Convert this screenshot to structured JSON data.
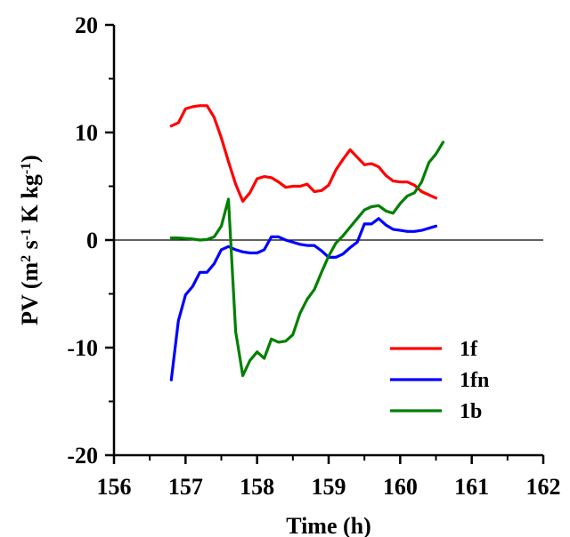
{
  "chart_data": {
    "type": "line",
    "xlabel": "Time (h)",
    "ylabel": {
      "parts": [
        {
          "text": "PV (m",
          "sup": false
        },
        {
          "text": "2",
          "sup": true
        },
        {
          "text": " s",
          "sup": false
        },
        {
          "text": "-1",
          "sup": true
        },
        {
          "text": " K kg",
          "sup": false
        },
        {
          "text": "-1",
          "sup": true
        },
        {
          "text": ")",
          "sup": false
        }
      ]
    },
    "xlim": [
      156,
      162
    ],
    "ylim": [
      -20,
      20
    ],
    "xticks": [
      156,
      157,
      158,
      159,
      160,
      161,
      162
    ],
    "yticks": [
      -20,
      -10,
      0,
      10,
      20
    ],
    "xtick_labels": [
      "156",
      "157",
      "158",
      "159",
      "160",
      "161",
      "162"
    ],
    "ytick_labels": [
      "-20",
      "-10",
      "0",
      "10",
      "20"
    ],
    "zero_line": true,
    "grid": false,
    "legend_position": "lower-right",
    "series": [
      {
        "name": "1f",
        "color": "#ff0000",
        "points": [
          [
            156.8,
            10.6
          ],
          [
            156.9,
            10.9
          ],
          [
            157.0,
            12.2
          ],
          [
            157.1,
            12.4
          ],
          [
            157.2,
            12.5
          ],
          [
            157.3,
            12.5
          ],
          [
            157.4,
            11.4
          ],
          [
            157.5,
            9.5
          ],
          [
            157.6,
            7.3
          ],
          [
            157.7,
            5.2
          ],
          [
            157.8,
            3.6
          ],
          [
            157.9,
            4.4
          ],
          [
            158.0,
            5.7
          ],
          [
            158.1,
            5.9
          ],
          [
            158.2,
            5.8
          ],
          [
            158.3,
            5.4
          ],
          [
            158.4,
            4.9
          ],
          [
            158.5,
            5.0
          ],
          [
            158.6,
            5.0
          ],
          [
            158.7,
            5.2
          ],
          [
            158.8,
            4.5
          ],
          [
            158.9,
            4.6
          ],
          [
            159.0,
            5.1
          ],
          [
            159.1,
            6.5
          ],
          [
            159.2,
            7.5
          ],
          [
            159.3,
            8.4
          ],
          [
            159.4,
            7.7
          ],
          [
            159.5,
            7.0
          ],
          [
            159.6,
            7.1
          ],
          [
            159.7,
            6.8
          ],
          [
            159.8,
            6.0
          ],
          [
            159.9,
            5.5
          ],
          [
            160.0,
            5.4
          ],
          [
            160.1,
            5.4
          ],
          [
            160.2,
            5.1
          ],
          [
            160.3,
            4.5
          ],
          [
            160.4,
            4.2
          ],
          [
            160.5,
            3.9
          ]
        ]
      },
      {
        "name": "1fn",
        "color": "#0000ff",
        "points": [
          [
            156.8,
            -13.0
          ],
          [
            156.9,
            -7.5
          ],
          [
            157.0,
            -5.1
          ],
          [
            157.1,
            -4.3
          ],
          [
            157.2,
            -3.0
          ],
          [
            157.3,
            -3.0
          ],
          [
            157.4,
            -2.2
          ],
          [
            157.5,
            -0.9
          ],
          [
            157.6,
            -0.6
          ],
          [
            157.7,
            -0.9
          ],
          [
            157.8,
            -1.1
          ],
          [
            157.9,
            -1.2
          ],
          [
            158.0,
            -1.2
          ],
          [
            158.1,
            -0.9
          ],
          [
            158.2,
            0.3
          ],
          [
            158.3,
            0.3
          ],
          [
            158.4,
            0.0
          ],
          [
            158.5,
            -0.2
          ],
          [
            158.6,
            -0.4
          ],
          [
            158.7,
            -0.5
          ],
          [
            158.8,
            -0.5
          ],
          [
            158.9,
            -1.0
          ],
          [
            159.0,
            -1.6
          ],
          [
            159.1,
            -1.6
          ],
          [
            159.2,
            -1.3
          ],
          [
            159.3,
            -0.7
          ],
          [
            159.4,
            -0.2
          ],
          [
            159.5,
            1.5
          ],
          [
            159.6,
            1.5
          ],
          [
            159.7,
            2.0
          ],
          [
            159.8,
            1.4
          ],
          [
            159.9,
            1.0
          ],
          [
            160.0,
            0.9
          ],
          [
            160.1,
            0.8
          ],
          [
            160.2,
            0.8
          ],
          [
            160.3,
            0.9
          ],
          [
            160.4,
            1.1
          ],
          [
            160.5,
            1.3
          ]
        ]
      },
      {
        "name": "1b",
        "color": "#008000",
        "points": [
          [
            156.8,
            0.2
          ],
          [
            156.9,
            0.2
          ],
          [
            157.0,
            0.15
          ],
          [
            157.1,
            0.1
          ],
          [
            157.2,
            0.0
          ],
          [
            157.3,
            0.05
          ],
          [
            157.4,
            0.3
          ],
          [
            157.5,
            1.3
          ],
          [
            157.6,
            3.8
          ],
          [
            157.7,
            -8.5
          ],
          [
            157.8,
            -12.6
          ],
          [
            157.9,
            -11.2
          ],
          [
            158.0,
            -10.4
          ],
          [
            158.1,
            -11.0
          ],
          [
            158.2,
            -9.2
          ],
          [
            158.3,
            -9.5
          ],
          [
            158.4,
            -9.4
          ],
          [
            158.5,
            -8.8
          ],
          [
            158.6,
            -6.8
          ],
          [
            158.7,
            -5.5
          ],
          [
            158.8,
            -4.6
          ],
          [
            158.9,
            -3.0
          ],
          [
            159.0,
            -1.5
          ],
          [
            159.1,
            -0.3
          ],
          [
            159.2,
            0.4
          ],
          [
            159.3,
            1.2
          ],
          [
            159.4,
            2.0
          ],
          [
            159.5,
            2.8
          ],
          [
            159.6,
            3.1
          ],
          [
            159.7,
            3.2
          ],
          [
            159.8,
            2.7
          ],
          [
            159.9,
            2.5
          ],
          [
            160.0,
            3.4
          ],
          [
            160.1,
            4.1
          ],
          [
            160.2,
            4.4
          ],
          [
            160.3,
            5.4
          ],
          [
            160.4,
            7.2
          ],
          [
            160.5,
            8.0
          ],
          [
            160.6,
            9.1
          ]
        ]
      }
    ]
  }
}
